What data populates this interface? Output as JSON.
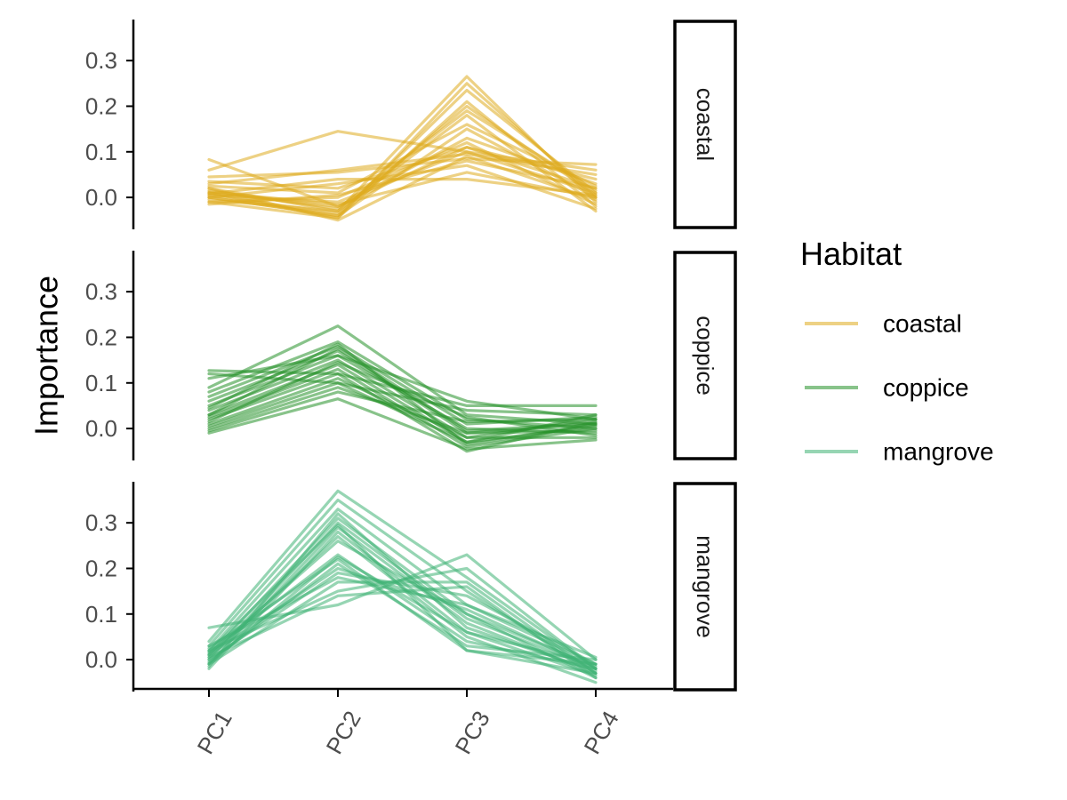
{
  "chart_data": {
    "type": "line",
    "layout": "facet-grid-rows",
    "x": [
      "PC1",
      "PC2",
      "PC3",
      "PC4"
    ],
    "ylabel": "Importance",
    "xlabel": "",
    "ylim": [
      -0.07,
      0.39
    ],
    "yticks": [
      0.0,
      0.1,
      0.2,
      0.3
    ],
    "ytick_labels": [
      "0.0",
      "0.1",
      "0.2",
      "0.3"
    ],
    "grid": false,
    "legend": {
      "title": "Habitat",
      "position": "right",
      "items": [
        {
          "label": "coastal",
          "color": "#DFAC1F"
        },
        {
          "label": "coppice",
          "color": "#26912A"
        },
        {
          "label": "mangrove",
          "color": "#40B374"
        }
      ]
    },
    "facets": [
      {
        "label": "coastal",
        "color": "#DFAC1F",
        "series": [
          [
            0.083,
            -0.02,
            0.11,
            0.02
          ],
          [
            0.06,
            0.145,
            0.1,
            0.06
          ],
          [
            0.045,
            0.055,
            0.085,
            0.072
          ],
          [
            0.03,
            0.06,
            0.095,
            0.05
          ],
          [
            0.02,
            -0.03,
            0.265,
            -0.01
          ],
          [
            0.01,
            -0.045,
            0.25,
            0.0
          ],
          [
            0.0,
            -0.04,
            0.235,
            0.01
          ],
          [
            -0.01,
            -0.045,
            0.21,
            -0.02
          ],
          [
            0.005,
            -0.035,
            0.2,
            0.005
          ],
          [
            0.015,
            -0.025,
            0.19,
            0.015
          ],
          [
            -0.005,
            -0.03,
            0.18,
            -0.03
          ],
          [
            0.025,
            0.01,
            0.16,
            0.025
          ],
          [
            0.0,
            -0.04,
            0.15,
            0.0
          ],
          [
            0.01,
            -0.02,
            0.13,
            0.03
          ],
          [
            -0.01,
            0.0,
            0.12,
            -0.015
          ],
          [
            0.035,
            0.02,
            0.11,
            0.04
          ],
          [
            0.005,
            -0.01,
            0.1,
            0.01
          ],
          [
            0.02,
            -0.05,
            0.09,
            -0.005
          ],
          [
            -0.015,
            0.005,
            0.08,
            0.02
          ],
          [
            0.0,
            0.03,
            0.07,
            -0.025
          ],
          [
            0.012,
            -0.015,
            0.055,
            0.0
          ],
          [
            0.008,
            0.04,
            0.04,
            0.005
          ]
        ]
      },
      {
        "label": "coppice",
        "color": "#26912A",
        "series": [
          [
            0.127,
            0.12,
            0.05,
            0.05
          ],
          [
            0.12,
            0.1,
            0.04,
            0.03
          ],
          [
            0.11,
            0.16,
            0.06,
            0.02
          ],
          [
            0.09,
            0.225,
            0.03,
            0.01
          ],
          [
            0.08,
            0.19,
            0.02,
            0.0
          ],
          [
            0.07,
            0.18,
            0.01,
            0.025
          ],
          [
            0.06,
            0.17,
            -0.01,
            0.01
          ],
          [
            0.05,
            0.16,
            0.0,
            -0.01
          ],
          [
            0.04,
            0.15,
            -0.02,
            0.02
          ],
          [
            0.03,
            0.14,
            -0.03,
            0.03
          ],
          [
            0.025,
            0.13,
            -0.04,
            0.0
          ],
          [
            0.02,
            0.12,
            -0.05,
            0.015
          ],
          [
            0.01,
            0.11,
            -0.02,
            -0.02
          ],
          [
            0.005,
            0.1,
            -0.03,
            0.005
          ],
          [
            0.0,
            0.09,
            -0.01,
            -0.005
          ],
          [
            -0.005,
            0.08,
            0.015,
            0.02
          ],
          [
            -0.01,
            0.065,
            -0.045,
            -0.025
          ],
          [
            0.03,
            0.175,
            -0.005,
            0.012
          ],
          [
            0.015,
            0.145,
            0.025,
            -0.015
          ],
          [
            0.045,
            0.185,
            -0.035,
            0.008
          ]
        ]
      },
      {
        "label": "mangrove",
        "color": "#40B374",
        "series": [
          [
            0.07,
            0.12,
            0.23,
            0.0
          ],
          [
            0.04,
            0.37,
            0.18,
            -0.02
          ],
          [
            0.03,
            0.35,
            0.15,
            -0.03
          ],
          [
            0.02,
            0.33,
            0.12,
            -0.01
          ],
          [
            0.01,
            0.31,
            0.1,
            -0.04
          ],
          [
            0.0,
            0.3,
            0.09,
            -0.02
          ],
          [
            -0.01,
            0.29,
            0.08,
            -0.03
          ],
          [
            -0.02,
            0.28,
            0.06,
            -0.01
          ],
          [
            0.005,
            0.27,
            0.05,
            -0.05
          ],
          [
            0.015,
            0.23,
            0.04,
            -0.02
          ],
          [
            0.025,
            0.22,
            0.02,
            -0.03
          ],
          [
            -0.005,
            0.21,
            0.03,
            0.0
          ],
          [
            0.01,
            0.2,
            0.11,
            -0.02
          ],
          [
            0.0,
            0.19,
            0.14,
            -0.01
          ],
          [
            -0.01,
            0.17,
            0.17,
            -0.03
          ],
          [
            0.02,
            0.15,
            0.2,
            -0.02
          ],
          [
            0.005,
            0.14,
            0.16,
            -0.04
          ],
          [
            -0.015,
            0.32,
            0.07,
            -0.025
          ],
          [
            0.012,
            0.26,
            0.1,
            -0.015
          ],
          [
            0.03,
            0.18,
            0.12,
            0.005
          ],
          [
            -0.008,
            0.225,
            0.06,
            -0.035
          ],
          [
            0.018,
            0.295,
            0.02,
            -0.01
          ]
        ]
      }
    ]
  }
}
